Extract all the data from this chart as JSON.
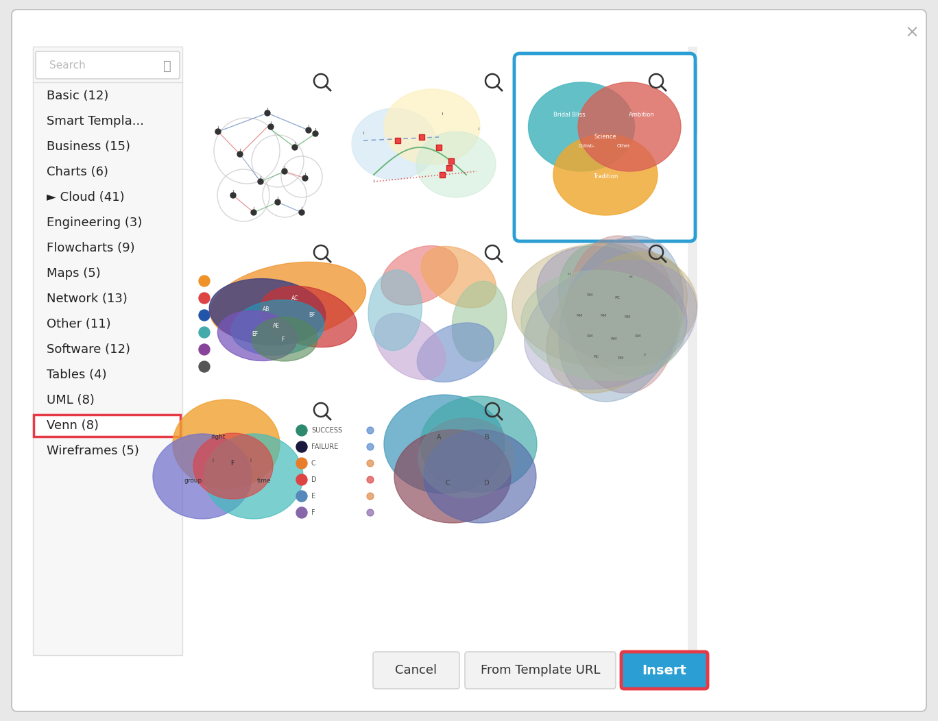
{
  "bg_color": "#e8e8e8",
  "dialog_bg": "#ffffff",
  "dialog_border": "#cccccc",
  "sidebar_bg": "#f7f7f7",
  "sidebar_border": "#dddddd",
  "list_items": [
    "Basic (12)",
    "Smart Templa...",
    "Business (15)",
    "Charts (6)",
    "► Cloud (41)",
    "Engineering (3)",
    "Flowcharts (9)",
    "Maps (5)",
    "Network (13)",
    "Other (11)",
    "Software (12)",
    "Tables (4)",
    "UML (8)",
    "Venn (8)",
    "Wireframes (5)"
  ],
  "highlighted_item": "Venn (8)",
  "highlight_border": "#e63946",
  "selected_template_border": "#2b9fd4",
  "venn3_colors": [
    "#4db8c0",
    "#d96055",
    "#f0a830"
  ],
  "cancel_btn_bg": "#f0f0f0",
  "cancel_btn_border": "#cccccc",
  "from_template_btn_bg": "#f0f0f0",
  "from_template_btn_border": "#cccccc",
  "insert_btn_bg": "#2b9fd4",
  "insert_btn_border": "#e63946",
  "insert_btn_text": "Insert",
  "cancel_btn_text": "Cancel",
  "from_template_btn_text": "From Template URL",
  "scrollbar_color": "#c8c8c8",
  "thumb_color": "#a0a0a0"
}
